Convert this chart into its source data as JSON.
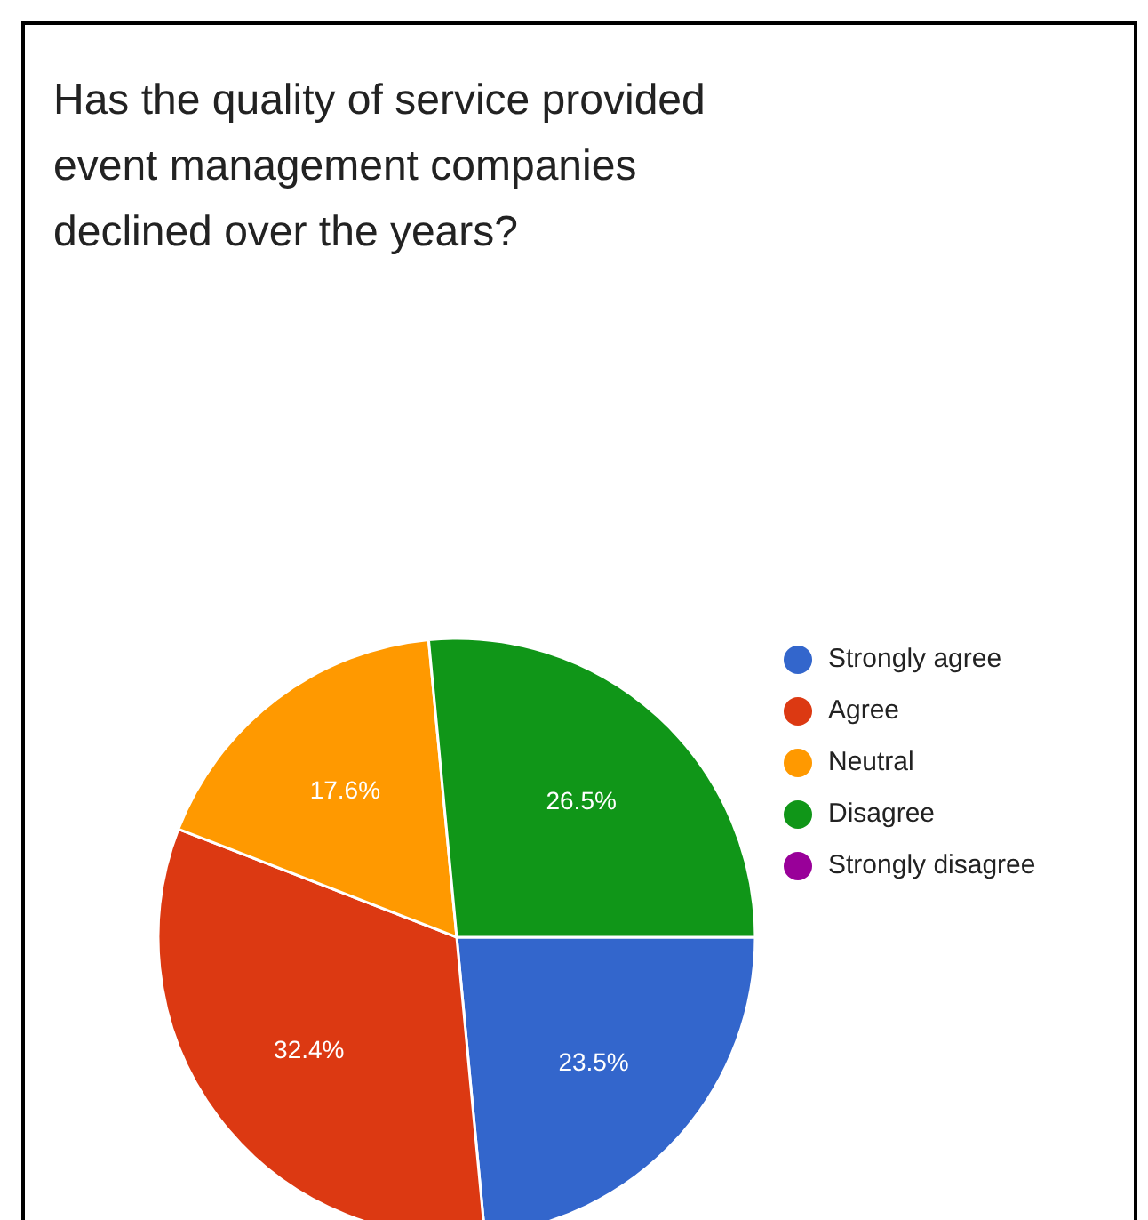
{
  "chart_data": {
    "type": "pie",
    "title": "Has the quality of service provided event management companies declined over the years?",
    "categories": [
      "Strongly agree",
      "Agree",
      "Neutral",
      "Disagree",
      "Strongly disagree"
    ],
    "values": [
      23.5,
      32.4,
      17.6,
      26.5,
      0
    ],
    "colors": [
      "#3366cc",
      "#dc3912",
      "#ff9900",
      "#109618",
      "#990099"
    ],
    "value_labels": [
      "23.5%",
      "32.4%",
      "17.6%",
      "26.5%",
      null
    ],
    "legend": "right"
  }
}
